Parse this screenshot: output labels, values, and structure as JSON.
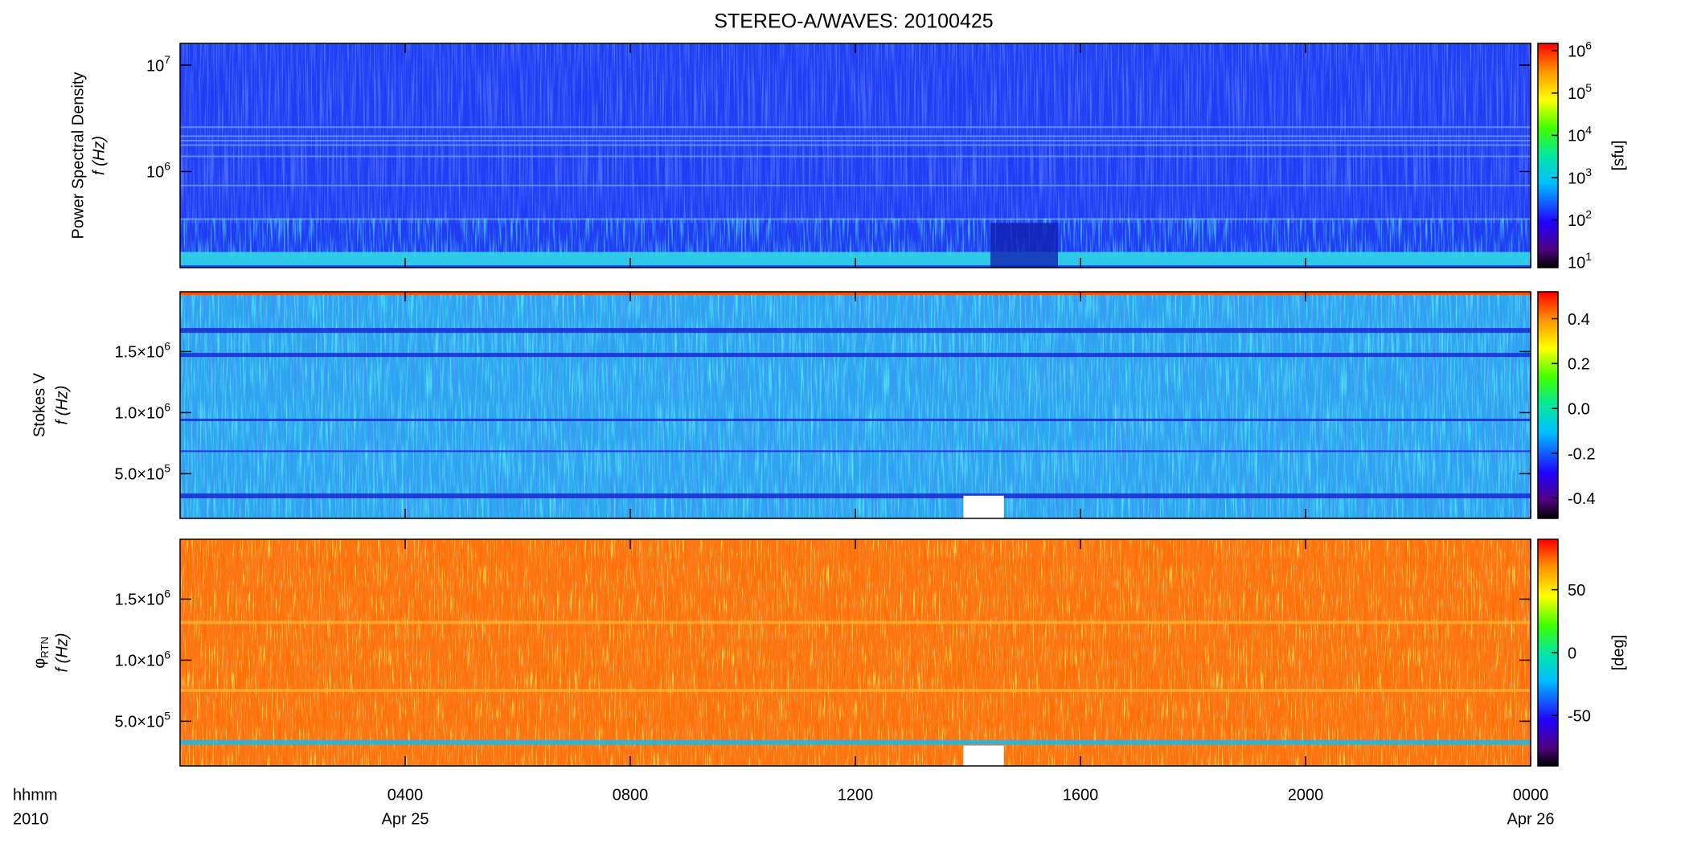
{
  "chart_data": [
    {
      "type": "heatmap",
      "title": "STEREO-A/WAVES: 20100425",
      "ylabel": [
        "Power Spectral Density",
        "f (Hz)"
      ],
      "log_y": true,
      "ylim": [
        125000,
        16000000
      ],
      "yticks": [
        {
          "value": 1000000,
          "label": "10",
          "sup": "6"
        },
        {
          "value": 10000000,
          "label": "10",
          "sup": "7"
        }
      ],
      "colorbar": {
        "label": "[sfu]",
        "log": true,
        "clim": [
          7.4,
          1500000
        ],
        "ticks": [
          {
            "value": 10,
            "label": "10",
            "sup": "1"
          },
          {
            "value": 100,
            "label": "10",
            "sup": "2"
          },
          {
            "value": 1000,
            "label": "10",
            "sup": "3"
          },
          {
            "value": 10000,
            "label": "10",
            "sup": "4"
          },
          {
            "value": 100000,
            "label": "10",
            "sup": "5"
          },
          {
            "value": 1000000,
            "label": "10",
            "sup": "6"
          }
        ]
      }
    },
    {
      "type": "heatmap",
      "ylabel": [
        "Stokes V",
        "f (Hz)"
      ],
      "log_y": false,
      "ylim": [
        134000,
        1990000
      ],
      "yticks": [
        {
          "value": 500000,
          "label": "5.0×10",
          "sup": "5"
        },
        {
          "value": 1000000,
          "label": "1.0×10",
          "sup": "6"
        },
        {
          "value": 1500000,
          "label": "1.5×10",
          "sup": "6"
        }
      ],
      "colorbar": {
        "log": false,
        "clim": [
          -0.49,
          0.52
        ],
        "ticks": [
          -0.4,
          -0.2,
          {
            "value": 0,
            "label": "0.0"
          },
          0.2,
          0.4
        ]
      }
    },
    {
      "type": "heatmap",
      "ylabel": [
        "φ",
        "f (Hz)"
      ],
      "ylabel_sub": "RTN",
      "log_y": false,
      "ylim": [
        134000,
        1990000
      ],
      "yticks": [
        {
          "value": 500000,
          "label": "5.0×10",
          "sup": "5"
        },
        {
          "value": 1000000,
          "label": "1.0×10",
          "sup": "6"
        },
        {
          "value": 1500000,
          "label": "1.5×10",
          "sup": "6"
        }
      ],
      "colorbar": {
        "label": "[deg]",
        "log": false,
        "clim": [
          -90,
          90
        ],
        "ticks": [
          -50,
          0,
          50
        ]
      },
      "xlabel": [
        "hhmm",
        "2010"
      ],
      "xlim": [
        0,
        24
      ],
      "xticks": [
        {
          "value": 4,
          "label": "0400"
        },
        {
          "value": 8,
          "label": "0800"
        },
        {
          "value": 12,
          "label": "1200"
        },
        {
          "value": 16,
          "label": "1600"
        },
        {
          "value": 20,
          "label": "2000"
        },
        {
          "value": 24,
          "label": "0000"
        }
      ],
      "xtick_dates": [
        {
          "value": 4,
          "label": "Apr 25"
        },
        {
          "value": 24,
          "label": "Apr 26"
        }
      ]
    }
  ]
}
